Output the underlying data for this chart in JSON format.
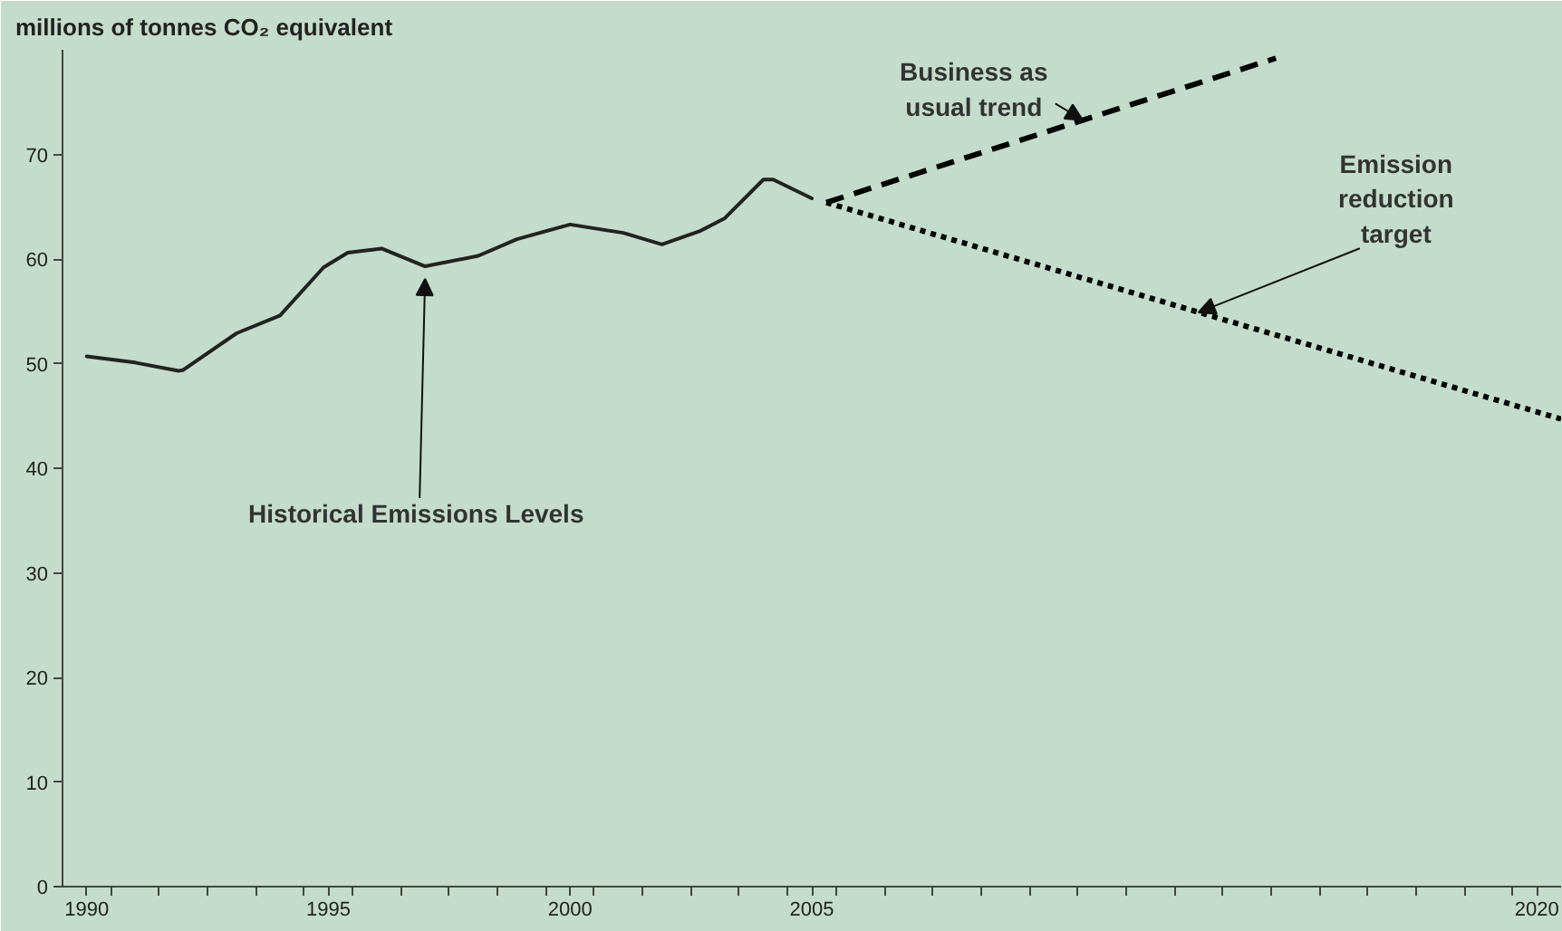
{
  "chart_data": {
    "type": "line",
    "title": "millions of tonnes CO₂ equivalent",
    "xlim": [
      1989.5,
      2020.5
    ],
    "ylim": [
      0,
      80
    ],
    "xticks": [
      1990,
      1995,
      2000,
      2005,
      2020,
      {
        "value": 1990.5,
        "label": null
      },
      {
        "value": 1991.5,
        "label": null
      },
      {
        "value": 1992.5,
        "label": null
      },
      {
        "value": 1993.5,
        "label": null
      },
      {
        "value": 1994.5,
        "label": null
      },
      {
        "value": 1995.5,
        "label": null
      },
      {
        "value": 1996.5,
        "label": null
      },
      {
        "value": 1997.5,
        "label": null
      },
      {
        "value": 1998.5,
        "label": null
      },
      {
        "value": 1999.5,
        "label": null
      },
      {
        "value": 2000.5,
        "label": null
      },
      {
        "value": 2001.5,
        "label": null
      },
      {
        "value": 2002.5,
        "label": null
      },
      {
        "value": 2003.5,
        "label": null
      },
      {
        "value": 2004.5,
        "label": null
      },
      {
        "value": 2005.5,
        "label": null
      },
      {
        "value": 2006.5,
        "label": null
      },
      {
        "value": 2007.5,
        "label": null
      },
      {
        "value": 2008.5,
        "label": null
      },
      {
        "value": 2009.5,
        "label": null
      },
      {
        "value": 2010.5,
        "label": null
      },
      {
        "value": 2011.5,
        "label": null
      },
      {
        "value": 2012.5,
        "label": null
      },
      {
        "value": 2013.5,
        "label": null
      },
      {
        "value": 2014.5,
        "label": null
      },
      {
        "value": 2015.5,
        "label": null
      },
      {
        "value": 2016.5,
        "label": null
      },
      {
        "value": 2017.5,
        "label": null
      },
      {
        "value": 2018.5,
        "label": null
      },
      {
        "value": 2019.5,
        "label": null
      }
    ],
    "yticks": [
      0,
      10,
      20,
      30,
      40,
      50,
      60,
      70
    ],
    "series": [
      {
        "color": "#222222",
        "line_style": "solid",
        "x": [
          1990.0,
          1991.0,
          1991.9,
          1992.0,
          1993.1,
          1994.0,
          1994.9,
          1995.4,
          1996.1,
          1997.0,
          1998.1,
          1998.9,
          2000.0,
          2001.1,
          2001.9,
          2002.7,
          2003.2,
          2004.0,
          2004.2,
          2005.0
        ],
        "values": [
          50.7,
          50.1,
          49.3,
          49.4,
          52.9,
          54.6,
          59.2,
          60.6,
          61.0,
          59.3,
          60.3,
          61.9,
          63.3,
          62.5,
          61.4,
          62.7,
          63.9,
          67.6,
          67.6,
          65.8
        ]
      },
      {
        "color": "#000000",
        "line_style": "dashed",
        "x": [
          2005.3,
          2014.6
        ],
        "values": [
          65.4,
          79.2
        ]
      },
      {
        "color": "#000000",
        "line_style": "dotted",
        "x": [
          2005.3,
          2020.5
        ],
        "values": [
          65.4,
          44.7
        ]
      }
    ],
    "annotations": [
      {
        "text": "Historical  Emissions Levels",
        "x": 1997.0,
        "y": 59.3
      },
      {
        "text": "Business as\nusual trend",
        "x": 2010.6,
        "y": 73.3
      },
      {
        "text": "Emission\nreduction\ntarget",
        "x": 2013.0,
        "y": 54.9
      }
    ]
  }
}
